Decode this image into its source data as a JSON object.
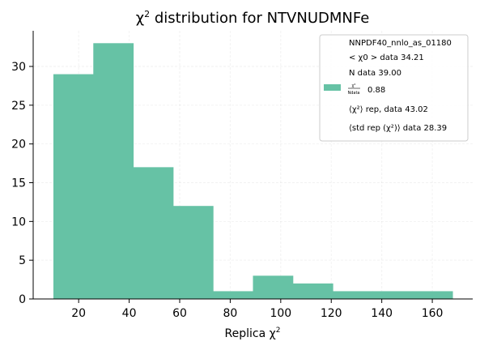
{
  "chart_data": {
    "type": "bar",
    "title_prefix": "χ",
    "title_sup": "2",
    "title_suffix": " distribution for NTVNUDMNFe",
    "xlabel_prefix": "Replica χ",
    "xlabel_sup": "2",
    "ylabel": "",
    "xlim": [
      2,
      176
    ],
    "ylim": [
      0,
      34.6
    ],
    "xticks": [
      20,
      40,
      60,
      80,
      100,
      120,
      140,
      160
    ],
    "yticks": [
      0,
      5,
      10,
      15,
      20,
      25,
      30
    ],
    "grid": true,
    "legend_placement": "top-right",
    "bar_color": "#66c2a5",
    "bins": [
      {
        "x_start": 10.0,
        "x_end": 25.8,
        "value": 29
      },
      {
        "x_start": 25.8,
        "x_end": 41.6,
        "value": 33
      },
      {
        "x_start": 41.6,
        "x_end": 57.4,
        "value": 17
      },
      {
        "x_start": 57.4,
        "x_end": 73.2,
        "value": 12
      },
      {
        "x_start": 73.2,
        "x_end": 89.0,
        "value": 1
      },
      {
        "x_start": 89.0,
        "x_end": 104.8,
        "value": 3
      },
      {
        "x_start": 104.8,
        "x_end": 120.6,
        "value": 2
      },
      {
        "x_start": 120.6,
        "x_end": 136.4,
        "value": 1
      },
      {
        "x_start": 136.4,
        "x_end": 152.2,
        "value": 1
      },
      {
        "x_start": 152.2,
        "x_end": 168.0,
        "value": 1
      }
    ],
    "legend": {
      "series_name": "NNPDF40_nnlo_as_01180",
      "chi2_label": "< χ0 > data",
      "chi2_value": "34.21",
      "ndata_label": "N data",
      "ndata_value": "39.00",
      "ratio_num": "χ²",
      "ratio_den": "Ndata",
      "ratio_value": "0.88",
      "rep_label": "⟨χ²⟩ rep, data",
      "rep_value": "43.02",
      "std_label": "⟨std rep (χ²)⟩ data",
      "std_value": "28.39"
    }
  }
}
